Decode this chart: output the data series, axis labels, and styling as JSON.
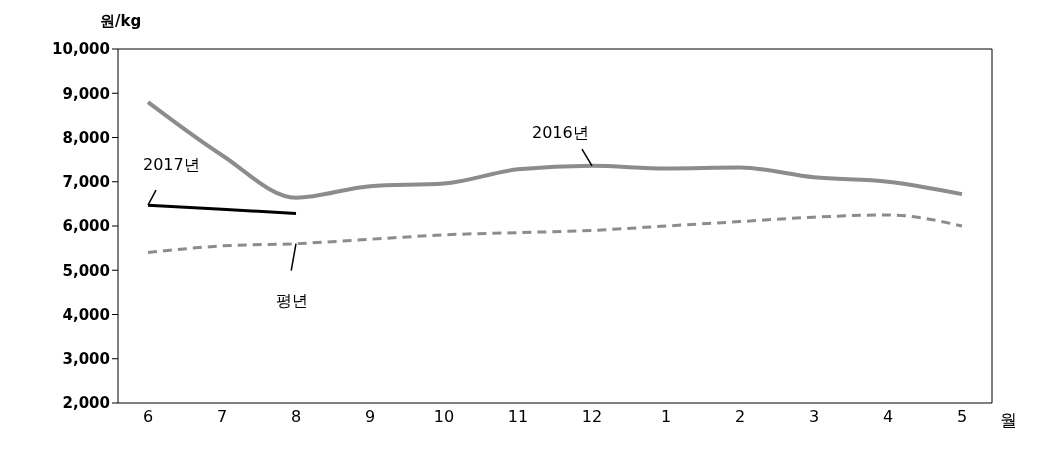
{
  "chart_data": {
    "type": "line",
    "ylabel": "원/kg",
    "xlabel": "월",
    "categories": [
      "6",
      "7",
      "8",
      "9",
      "10",
      "11",
      "12",
      "1",
      "2",
      "3",
      "4",
      "5"
    ],
    "series": [
      {
        "name": "2016년",
        "color": "#8c8c8c",
        "values": [
          8800,
          7600,
          6640,
          6900,
          6960,
          7280,
          7360,
          7300,
          7320,
          7100,
          7000,
          6720
        ]
      },
      {
        "name": "2017년",
        "color": "#000000",
        "values": [
          6470,
          6380,
          6280,
          null,
          null,
          null,
          null,
          null,
          null,
          null,
          null,
          null
        ]
      },
      {
        "name": "평년",
        "color": "#8c8c8c",
        "line_style": "dashed",
        "values": [
          5400,
          5550,
          5600,
          5700,
          5800,
          5850,
          5900,
          6000,
          6100,
          6200,
          6250,
          6000
        ]
      }
    ],
    "ylim": [
      2000,
      10000
    ],
    "yticks": [
      {
        "value": 2000,
        "label": "2,000"
      },
      {
        "value": 3000,
        "label": "3,000"
      },
      {
        "value": 4000,
        "label": "4,000"
      },
      {
        "value": 5000,
        "label": "5,000"
      },
      {
        "value": 6000,
        "label": "6,000"
      },
      {
        "value": 7000,
        "label": "7,000"
      },
      {
        "value": 8000,
        "label": "8,000"
      },
      {
        "value": 9000,
        "label": "9,000"
      },
      {
        "value": 10000,
        "label": "10,000"
      }
    ],
    "grid": false,
    "legend": false,
    "marker": "none",
    "line_style": "solid"
  }
}
